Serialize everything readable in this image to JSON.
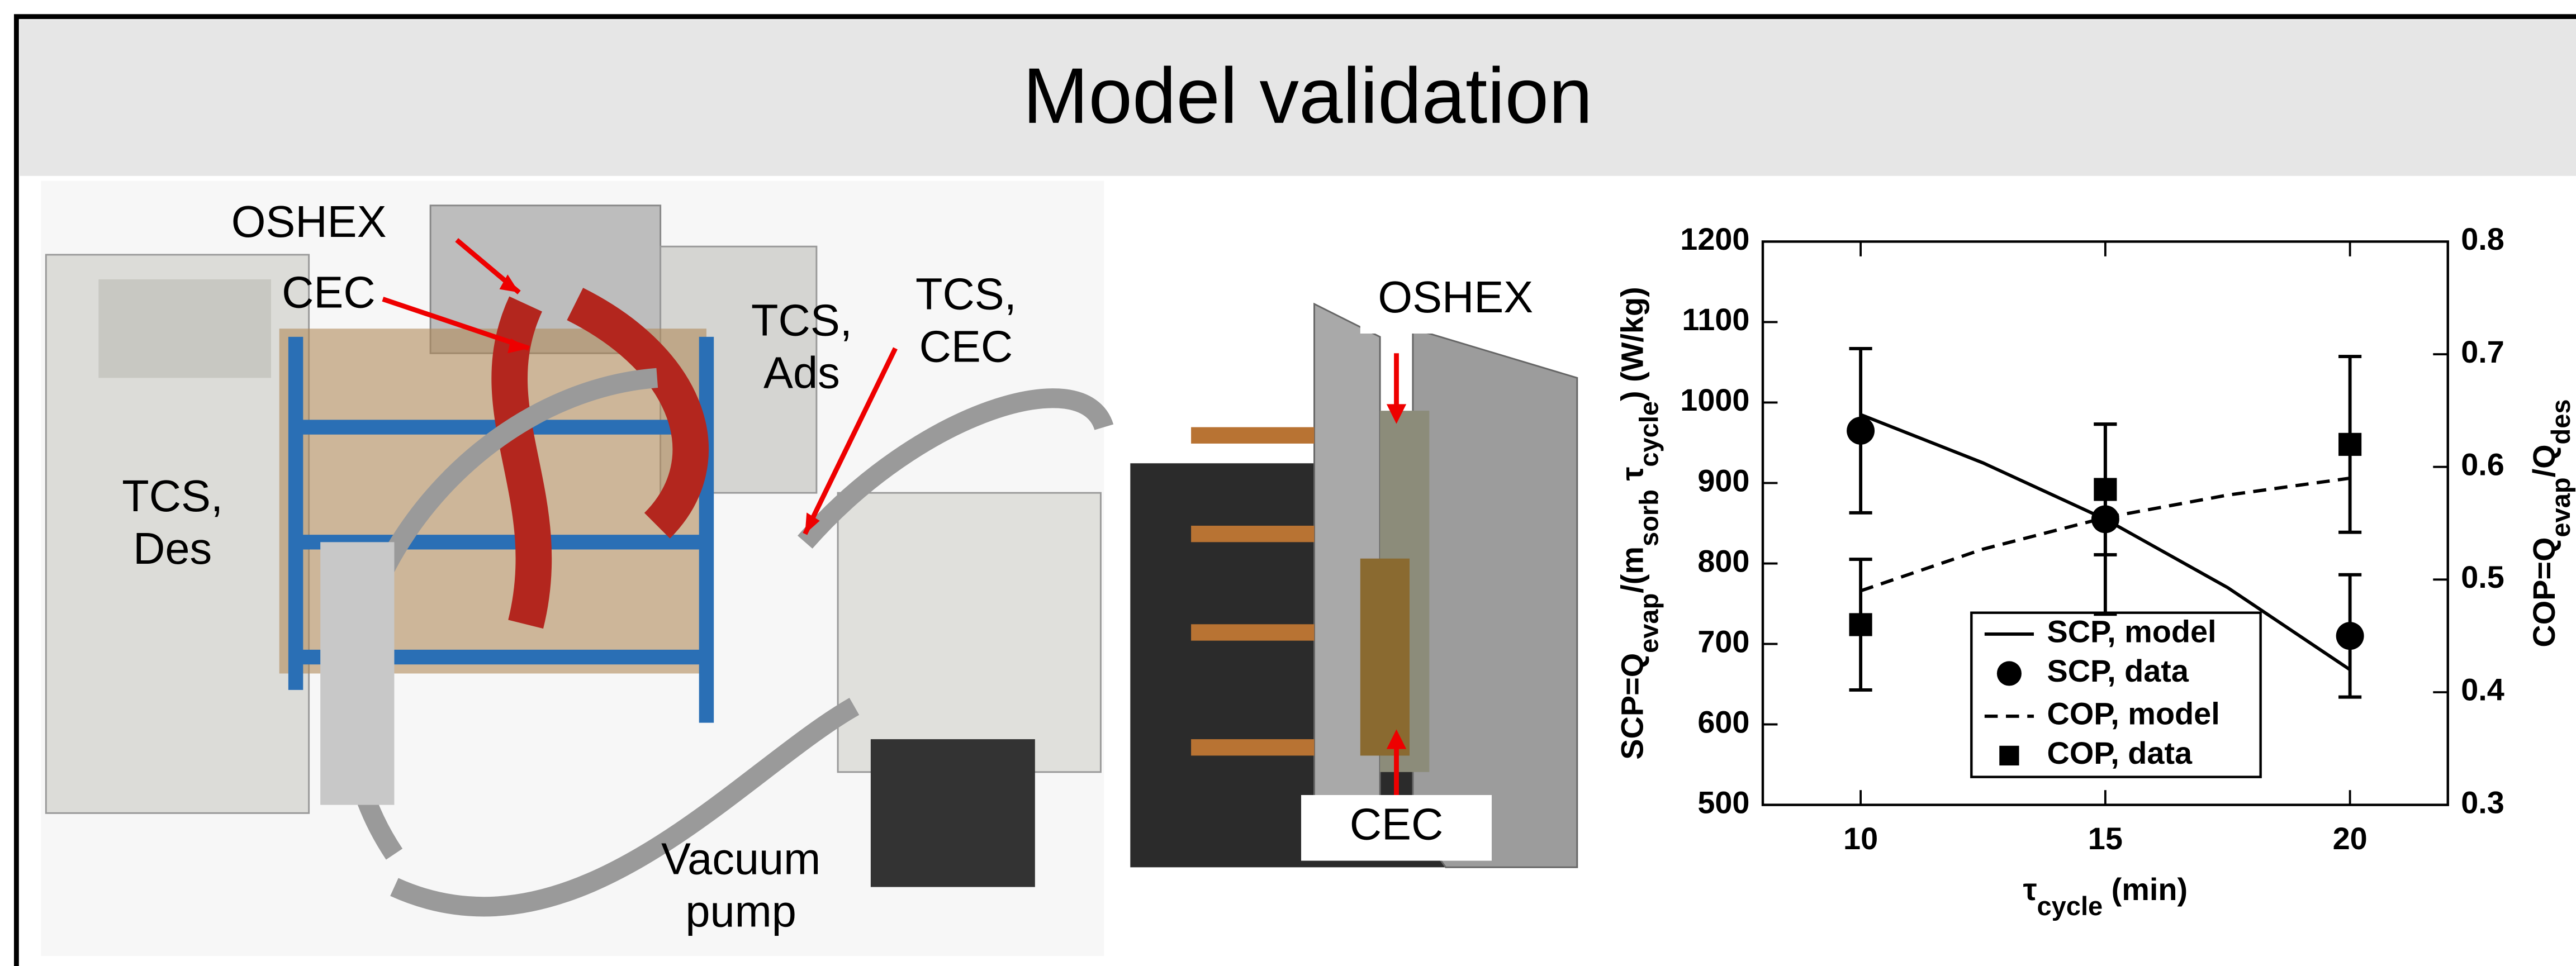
{
  "title": "Model validation",
  "photo_left_labels": [
    {
      "lines": [
        "OSHEX"
      ]
    },
    {
      "lines": [
        "CEC"
      ]
    },
    {
      "lines": [
        "TCS,",
        "Des"
      ]
    },
    {
      "lines": [
        "TCS,",
        "Ads"
      ]
    },
    {
      "lines": [
        "TCS,",
        "CEC"
      ]
    },
    {
      "lines": [
        "Vacuum",
        "pump"
      ]
    }
  ],
  "photo_right_labels": [
    {
      "lines": [
        "OSHEX"
      ]
    },
    {
      "lines": [
        "CEC"
      ]
    }
  ],
  "chart_data": {
    "type": "line",
    "ylabel_parts": [
      {
        "text": "SCP=Q",
        "sub": false
      },
      {
        "text": "evap",
        "sub": true
      },
      {
        "text": "/(m",
        "sub": false
      },
      {
        "text": "sorb",
        "sub": true
      },
      {
        "text": " τ",
        "sub": false
      },
      {
        "text": "cycle",
        "sub": true
      },
      {
        "text": ") (W/kg)",
        "sub": false
      }
    ],
    "y2label_parts": [
      {
        "text": "COP=Q",
        "sub": false
      },
      {
        "text": "evap",
        "sub": true
      },
      {
        "text": "/Q",
        "sub": false
      },
      {
        "text": "des",
        "sub": true
      }
    ],
    "xlabel_parts": [
      {
        "text": "τ",
        "sub": false
      },
      {
        "text": "cycle",
        "sub": true
      },
      {
        "text": " (min)",
        "sub": false
      }
    ],
    "xlim": [
      8,
      22
    ],
    "xticks": [
      10,
      15,
      20
    ],
    "ylim": [
      500,
      1200
    ],
    "yticks": [
      500,
      600,
      700,
      800,
      900,
      1000,
      1100,
      1200
    ],
    "y2lim": [
      0.3,
      0.8
    ],
    "y2ticks": [
      0.3,
      0.4,
      0.5,
      0.6,
      0.7,
      0.8
    ],
    "legend": "bottom-center",
    "series": [
      {
        "name": "SCP, model",
        "color": "#000000",
        "style": "solid",
        "x": [
          10,
          12.5,
          15,
          17.5,
          20
        ],
        "values": [
          985,
          925,
          855,
          770,
          668
        ]
      },
      {
        "name": "SCP, data",
        "color": "#000000",
        "marker": "circle",
        "x": [
          10,
          15,
          20
        ],
        "values": [
          965,
          855,
          710
        ],
        "errors": [
          102,
          118,
          76
        ]
      },
      {
        "name": "COP, model",
        "color": "#000000",
        "style": "dashed",
        "axis": "y2",
        "x": [
          10,
          12.5,
          15,
          17.5,
          20
        ],
        "values": [
          0.49,
          0.527,
          0.555,
          0.575,
          0.59
        ]
      },
      {
        "name": "COP, data",
        "color": "#000000",
        "marker": "square",
        "axis": "y2",
        "x": [
          10,
          15,
          20
        ],
        "values": [
          0.46,
          0.58,
          0.62
        ],
        "errors": [
          0.058,
          0.058,
          0.078
        ]
      }
    ]
  }
}
